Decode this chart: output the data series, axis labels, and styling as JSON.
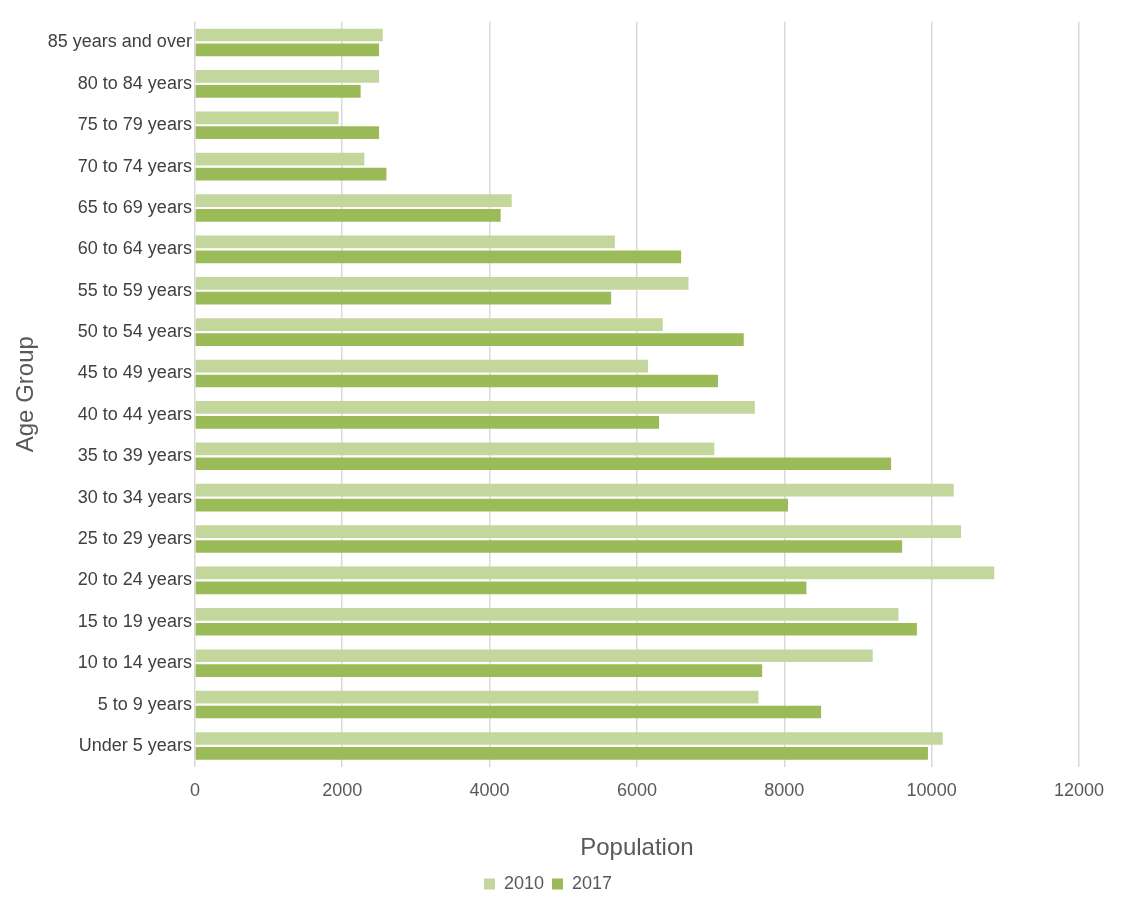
{
  "chart_data": {
    "type": "bar",
    "orientation": "horizontal",
    "xlabel": "Population",
    "ylabel": "Age Group",
    "categories": [
      "85 years and over",
      "80 to 84 years",
      "75 to 79 years",
      "70 to 74 years",
      "65 to 69 years",
      "60 to 64 years",
      "55 to 59 years",
      "50 to 54 years",
      "45 to 49 years",
      "40 to 44 years",
      "35 to 39 years",
      "30 to 34 years",
      "25 to 29 years",
      "20 to 24 years",
      "15 to 19 years",
      "10 to 14 years",
      "5 to 9 years",
      "Under 5 years"
    ],
    "series": [
      {
        "name": "2010",
        "color": "#c3d69b",
        "values": [
          2550,
          2500,
          1950,
          2300,
          4300,
          5700,
          6700,
          6350,
          6150,
          7600,
          7050,
          10300,
          10400,
          10850,
          9550,
          9200,
          7650,
          10150
        ]
      },
      {
        "name": "2017",
        "color": "#9bbb59",
        "values": [
          2500,
          2250,
          2500,
          2600,
          4150,
          6600,
          5650,
          7450,
          7100,
          6300,
          9450,
          8050,
          9600,
          8300,
          9800,
          7700,
          8500,
          9950
        ]
      }
    ],
    "xlim": [
      0,
      12000
    ],
    "xticks": [
      0,
      2000,
      4000,
      6000,
      8000,
      10000,
      12000
    ],
    "grid": "x",
    "legend": "bottom"
  }
}
